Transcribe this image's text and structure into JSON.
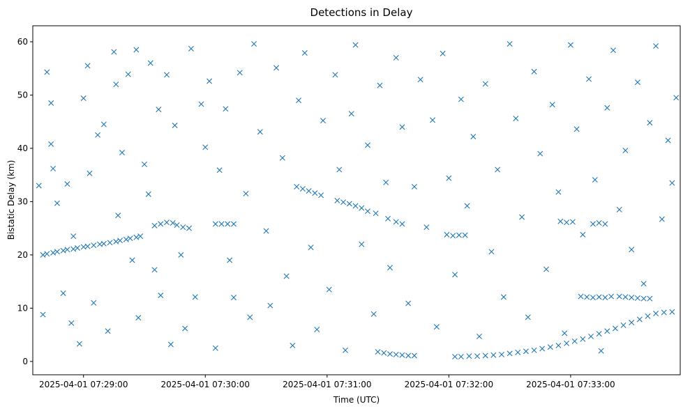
{
  "chart_data": {
    "type": "scatter",
    "title": "Detections in Delay",
    "xlabel": "Time (UTC)",
    "ylabel": "Bistatic Delay (km)",
    "marker": "x",
    "color": "#1f77b4",
    "grid": false,
    "x_time_range": [
      "2025-04-01 07:28:35",
      "2025-04-01 07:33:54"
    ],
    "ylim": [
      -2.5,
      63
    ],
    "x_ticks": [
      "2025-04-01 07:29:00",
      "2025-04-01 07:30:00",
      "2025-04-01 07:31:00",
      "2025-04-01 07:32:00",
      "2025-04-01 07:33:00"
    ],
    "y_ticks": [
      0,
      10,
      20,
      30,
      40,
      50,
      60
    ],
    "series": [
      {
        "values": [
          [
            "2025-04-01 07:28:40",
            20.0
          ],
          [
            "2025-04-01 07:28:42",
            20.2
          ],
          [
            "2025-04-01 07:28:45",
            20.4
          ],
          [
            "2025-04-01 07:28:47",
            20.6
          ],
          [
            "2025-04-01 07:28:50",
            20.8
          ],
          [
            "2025-04-01 07:28:52",
            21.0
          ],
          [
            "2025-04-01 07:28:55",
            21.1
          ],
          [
            "2025-04-01 07:28:57",
            21.3
          ],
          [
            "2025-04-01 07:29:00",
            21.5
          ],
          [
            "2025-04-01 07:29:02",
            21.6
          ],
          [
            "2025-04-01 07:29:05",
            21.8
          ],
          [
            "2025-04-01 07:29:08",
            22.0
          ],
          [
            "2025-04-01 07:29:10",
            22.1
          ],
          [
            "2025-04-01 07:29:13",
            22.3
          ],
          [
            "2025-04-01 07:29:16",
            22.5
          ],
          [
            "2025-04-01 07:29:18",
            22.7
          ],
          [
            "2025-04-01 07:29:21",
            22.9
          ],
          [
            "2025-04-01 07:29:23",
            23.1
          ],
          [
            "2025-04-01 07:29:26",
            23.3
          ],
          [
            "2025-04-01 07:29:28",
            23.5
          ],
          [
            "2025-04-01 07:29:35",
            25.5
          ],
          [
            "2025-04-01 07:29:38",
            25.8
          ],
          [
            "2025-04-01 07:29:41",
            26.1
          ],
          [
            "2025-04-01 07:29:44",
            26.0
          ],
          [
            "2025-04-01 07:29:46",
            25.6
          ],
          [
            "2025-04-01 07:29:49",
            25.2
          ],
          [
            "2025-04-01 07:29:52",
            25.0
          ],
          [
            "2025-04-01 07:30:05",
            25.8
          ],
          [
            "2025-04-01 07:30:08",
            25.8
          ],
          [
            "2025-04-01 07:30:11",
            25.8
          ],
          [
            "2025-04-01 07:30:14",
            25.8
          ],
          [
            "2025-04-01 07:30:45",
            32.8
          ],
          [
            "2025-04-01 07:30:48",
            32.4
          ],
          [
            "2025-04-01 07:30:51",
            32.0
          ],
          [
            "2025-04-01 07:30:54",
            31.6
          ],
          [
            "2025-04-01 07:30:57",
            31.2
          ],
          [
            "2025-04-01 07:31:05",
            30.2
          ],
          [
            "2025-04-01 07:31:08",
            29.9
          ],
          [
            "2025-04-01 07:31:11",
            29.6
          ],
          [
            "2025-04-01 07:31:14",
            29.2
          ],
          [
            "2025-04-01 07:31:17",
            28.8
          ],
          [
            "2025-04-01 07:31:20",
            28.2
          ],
          [
            "2025-04-01 07:31:24",
            27.8
          ],
          [
            "2025-04-01 07:31:30",
            26.8
          ],
          [
            "2025-04-01 07:31:34",
            26.2
          ],
          [
            "2025-04-01 07:31:37",
            25.8
          ],
          [
            "2025-04-01 07:31:25",
            1.8
          ],
          [
            "2025-04-01 07:31:28",
            1.6
          ],
          [
            "2025-04-01 07:31:31",
            1.4
          ],
          [
            "2025-04-01 07:31:34",
            1.3
          ],
          [
            "2025-04-01 07:31:37",
            1.2
          ],
          [
            "2025-04-01 07:31:40",
            1.1
          ],
          [
            "2025-04-01 07:31:43",
            1.1
          ],
          [
            "2025-04-01 07:31:59",
            23.8
          ],
          [
            "2025-04-01 07:32:02",
            23.6
          ],
          [
            "2025-04-01 07:32:05",
            23.7
          ],
          [
            "2025-04-01 07:32:08",
            23.7
          ],
          [
            "2025-04-01 07:32:03",
            0.9
          ],
          [
            "2025-04-01 07:32:06",
            0.9
          ],
          [
            "2025-04-01 07:32:10",
            1.0
          ],
          [
            "2025-04-01 07:32:14",
            1.0
          ],
          [
            "2025-04-01 07:32:18",
            1.1
          ],
          [
            "2025-04-01 07:32:22",
            1.2
          ],
          [
            "2025-04-01 07:32:26",
            1.3
          ],
          [
            "2025-04-01 07:32:30",
            1.5
          ],
          [
            "2025-04-01 07:32:34",
            1.7
          ],
          [
            "2025-04-01 07:32:38",
            1.9
          ],
          [
            "2025-04-01 07:32:42",
            2.1
          ],
          [
            "2025-04-01 07:32:46",
            2.4
          ],
          [
            "2025-04-01 07:32:50",
            2.7
          ],
          [
            "2025-04-01 07:32:54",
            3.0
          ],
          [
            "2025-04-01 07:32:58",
            3.4
          ],
          [
            "2025-04-01 07:33:02",
            3.8
          ],
          [
            "2025-04-01 07:33:06",
            4.2
          ],
          [
            "2025-04-01 07:33:10",
            4.7
          ],
          [
            "2025-04-01 07:33:14",
            5.2
          ],
          [
            "2025-04-01 07:33:18",
            5.7
          ],
          [
            "2025-04-01 07:33:22",
            6.2
          ],
          [
            "2025-04-01 07:33:26",
            6.8
          ],
          [
            "2025-04-01 07:33:30",
            7.3
          ],
          [
            "2025-04-01 07:33:34",
            7.9
          ],
          [
            "2025-04-01 07:33:38",
            8.5
          ],
          [
            "2025-04-01 07:33:42",
            9.0
          ],
          [
            "2025-04-01 07:33:46",
            9.2
          ],
          [
            "2025-04-01 07:33:50",
            9.3
          ],
          [
            "2025-04-01 07:32:55",
            26.3
          ],
          [
            "2025-04-01 07:32:58",
            26.1
          ],
          [
            "2025-04-01 07:33:01",
            26.2
          ],
          [
            "2025-04-01 07:33:05",
            12.2
          ],
          [
            "2025-04-01 07:33:08",
            12.1
          ],
          [
            "2025-04-01 07:33:11",
            12.0
          ],
          [
            "2025-04-01 07:33:14",
            12.1
          ],
          [
            "2025-04-01 07:33:17",
            12.0
          ],
          [
            "2025-04-01 07:33:20",
            12.2
          ],
          [
            "2025-04-01 07:33:24",
            12.2
          ],
          [
            "2025-04-01 07:33:27",
            12.1
          ],
          [
            "2025-04-01 07:33:30",
            12.0
          ],
          [
            "2025-04-01 07:33:33",
            11.9
          ],
          [
            "2025-04-01 07:33:36",
            11.8
          ],
          [
            "2025-04-01 07:33:39",
            11.8
          ],
          [
            "2025-04-01 07:33:11",
            25.8
          ],
          [
            "2025-04-01 07:33:14",
            26.0
          ],
          [
            "2025-04-01 07:33:17",
            25.8
          ],
          [
            "2025-04-01 07:28:38",
            33.0
          ],
          [
            "2025-04-01 07:28:40",
            8.8
          ],
          [
            "2025-04-01 07:28:42",
            54.3
          ],
          [
            "2025-04-01 07:28:44",
            40.8
          ],
          [
            "2025-04-01 07:28:44",
            48.5
          ],
          [
            "2025-04-01 07:28:45",
            36.2
          ],
          [
            "2025-04-01 07:28:47",
            29.7
          ],
          [
            "2025-04-01 07:28:50",
            12.8
          ],
          [
            "2025-04-01 07:28:52",
            33.3
          ],
          [
            "2025-04-01 07:28:54",
            7.2
          ],
          [
            "2025-04-01 07:28:55",
            23.5
          ],
          [
            "2025-04-01 07:28:58",
            3.3
          ],
          [
            "2025-04-01 07:29:00",
            49.4
          ],
          [
            "2025-04-01 07:29:02",
            55.5
          ],
          [
            "2025-04-01 07:29:03",
            35.3
          ],
          [
            "2025-04-01 07:29:05",
            11.0
          ],
          [
            "2025-04-01 07:29:07",
            42.5
          ],
          [
            "2025-04-01 07:29:10",
            44.5
          ],
          [
            "2025-04-01 07:29:12",
            5.7
          ],
          [
            "2025-04-01 07:29:15",
            58.1
          ],
          [
            "2025-04-01 07:29:16",
            52.0
          ],
          [
            "2025-04-01 07:29:17",
            27.4
          ],
          [
            "2025-04-01 07:29:19",
            39.2
          ],
          [
            "2025-04-01 07:29:22",
            53.9
          ],
          [
            "2025-04-01 07:29:24",
            19.0
          ],
          [
            "2025-04-01 07:29:26",
            58.5
          ],
          [
            "2025-04-01 07:29:27",
            8.2
          ],
          [
            "2025-04-01 07:29:30",
            37.0
          ],
          [
            "2025-04-01 07:29:32",
            31.4
          ],
          [
            "2025-04-01 07:29:33",
            56.0
          ],
          [
            "2025-04-01 07:29:35",
            17.2
          ],
          [
            "2025-04-01 07:29:37",
            47.3
          ],
          [
            "2025-04-01 07:29:38",
            12.4
          ],
          [
            "2025-04-01 07:29:41",
            53.8
          ],
          [
            "2025-04-01 07:29:43",
            3.2
          ],
          [
            "2025-04-01 07:29:45",
            44.3
          ],
          [
            "2025-04-01 07:29:48",
            20.0
          ],
          [
            "2025-04-01 07:29:50",
            6.2
          ],
          [
            "2025-04-01 07:29:53",
            58.7
          ],
          [
            "2025-04-01 07:29:55",
            12.1
          ],
          [
            "2025-04-01 07:29:58",
            48.3
          ],
          [
            "2025-04-01 07:30:00",
            40.2
          ],
          [
            "2025-04-01 07:30:02",
            52.6
          ],
          [
            "2025-04-01 07:30:05",
            2.5
          ],
          [
            "2025-04-01 07:30:07",
            35.9
          ],
          [
            "2025-04-01 07:30:10",
            47.4
          ],
          [
            "2025-04-01 07:30:12",
            19.0
          ],
          [
            "2025-04-01 07:30:14",
            12.0
          ],
          [
            "2025-04-01 07:30:17",
            54.2
          ],
          [
            "2025-04-01 07:30:20",
            31.5
          ],
          [
            "2025-04-01 07:30:22",
            8.3
          ],
          [
            "2025-04-01 07:30:24",
            59.6
          ],
          [
            "2025-04-01 07:30:27",
            43.1
          ],
          [
            "2025-04-01 07:30:30",
            24.5
          ],
          [
            "2025-04-01 07:30:32",
            10.5
          ],
          [
            "2025-04-01 07:30:35",
            55.1
          ],
          [
            "2025-04-01 07:30:38",
            38.2
          ],
          [
            "2025-04-01 07:30:40",
            16.0
          ],
          [
            "2025-04-01 07:30:43",
            3.0
          ],
          [
            "2025-04-01 07:30:46",
            49.0
          ],
          [
            "2025-04-01 07:30:49",
            57.9
          ],
          [
            "2025-04-01 07:30:52",
            21.4
          ],
          [
            "2025-04-01 07:30:55",
            6.0
          ],
          [
            "2025-04-01 07:30:58",
            45.2
          ],
          [
            "2025-04-01 07:31:01",
            13.5
          ],
          [
            "2025-04-01 07:31:04",
            53.8
          ],
          [
            "2025-04-01 07:31:06",
            36.0
          ],
          [
            "2025-04-01 07:31:09",
            2.1
          ],
          [
            "2025-04-01 07:31:12",
            46.5
          ],
          [
            "2025-04-01 07:31:14",
            59.4
          ],
          [
            "2025-04-01 07:31:17",
            22.0
          ],
          [
            "2025-04-01 07:31:20",
            40.6
          ],
          [
            "2025-04-01 07:31:23",
            8.9
          ],
          [
            "2025-04-01 07:31:26",
            51.8
          ],
          [
            "2025-04-01 07:31:29",
            33.6
          ],
          [
            "2025-04-01 07:31:31",
            17.6
          ],
          [
            "2025-04-01 07:31:34",
            57.0
          ],
          [
            "2025-04-01 07:31:37",
            44.0
          ],
          [
            "2025-04-01 07:31:40",
            10.9
          ],
          [
            "2025-04-01 07:31:43",
            32.8
          ],
          [
            "2025-04-01 07:31:46",
            52.9
          ],
          [
            "2025-04-01 07:31:49",
            25.2
          ],
          [
            "2025-04-01 07:31:52",
            45.3
          ],
          [
            "2025-04-01 07:31:54",
            6.5
          ],
          [
            "2025-04-01 07:31:57",
            57.8
          ],
          [
            "2025-04-01 07:32:00",
            34.4
          ],
          [
            "2025-04-01 07:32:03",
            16.3
          ],
          [
            "2025-04-01 07:32:06",
            49.2
          ],
          [
            "2025-04-01 07:32:09",
            29.2
          ],
          [
            "2025-04-01 07:32:12",
            42.2
          ],
          [
            "2025-04-01 07:32:15",
            4.7
          ],
          [
            "2025-04-01 07:32:18",
            52.1
          ],
          [
            "2025-04-01 07:32:21",
            20.6
          ],
          [
            "2025-04-01 07:32:24",
            36.0
          ],
          [
            "2025-04-01 07:32:27",
            12.1
          ],
          [
            "2025-04-01 07:32:30",
            59.6
          ],
          [
            "2025-04-01 07:32:33",
            45.6
          ],
          [
            "2025-04-01 07:32:36",
            27.1
          ],
          [
            "2025-04-01 07:32:39",
            8.3
          ],
          [
            "2025-04-01 07:32:42",
            54.4
          ],
          [
            "2025-04-01 07:32:45",
            39.0
          ],
          [
            "2025-04-01 07:32:48",
            17.3
          ],
          [
            "2025-04-01 07:32:51",
            48.2
          ],
          [
            "2025-04-01 07:32:54",
            31.8
          ],
          [
            "2025-04-01 07:32:57",
            5.3
          ],
          [
            "2025-04-01 07:33:00",
            59.4
          ],
          [
            "2025-04-01 07:33:03",
            43.6
          ],
          [
            "2025-04-01 07:33:06",
            23.8
          ],
          [
            "2025-04-01 07:33:09",
            53.0
          ],
          [
            "2025-04-01 07:33:12",
            34.1
          ],
          [
            "2025-04-01 07:33:15",
            2.0
          ],
          [
            "2025-04-01 07:33:18",
            47.6
          ],
          [
            "2025-04-01 07:33:21",
            58.4
          ],
          [
            "2025-04-01 07:33:24",
            28.5
          ],
          [
            "2025-04-01 07:33:27",
            39.6
          ],
          [
            "2025-04-01 07:33:30",
            21.0
          ],
          [
            "2025-04-01 07:33:33",
            52.4
          ],
          [
            "2025-04-01 07:33:36",
            14.6
          ],
          [
            "2025-04-01 07:33:39",
            44.8
          ],
          [
            "2025-04-01 07:33:42",
            59.2
          ],
          [
            "2025-04-01 07:33:45",
            26.7
          ],
          [
            "2025-04-01 07:33:48",
            41.5
          ],
          [
            "2025-04-01 07:33:50",
            33.5
          ],
          [
            "2025-04-01 07:33:52",
            49.5
          ]
        ]
      }
    ]
  }
}
